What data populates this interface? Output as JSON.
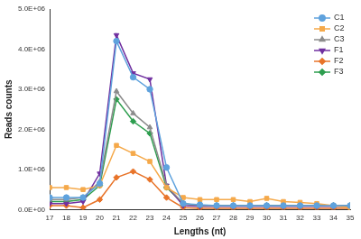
{
  "chart_data": {
    "type": "line",
    "x_label": "Lengths (nt)",
    "y_label": "Reads counts",
    "x": [
      17,
      18,
      19,
      20,
      21,
      22,
      23,
      24,
      25,
      26,
      27,
      28,
      29,
      30,
      31,
      32,
      33,
      34,
      35
    ],
    "xlim": [
      17,
      35
    ],
    "xticks": [
      17,
      18,
      19,
      20,
      21,
      22,
      23,
      24,
      25,
      26,
      27,
      28,
      29,
      30,
      31,
      32,
      33,
      34,
      35
    ],
    "ylim": [
      0,
      5000000
    ],
    "yticks": [
      {
        "value": 0,
        "label": "0.0E+00"
      },
      {
        "value": 1000000,
        "label": "1.0E+06"
      },
      {
        "value": 2000000,
        "label": "2.0E+06"
      },
      {
        "value": 3000000,
        "label": "3.0E+06"
      },
      {
        "value": 4000000,
        "label": "4.0E+06"
      },
      {
        "value": 5000000,
        "label": "5.0E+06"
      }
    ],
    "grid": false,
    "legend": "upper right",
    "series": [
      {
        "name": "C1",
        "color": "#5fa2dd",
        "marker": "circle",
        "values": [
          300000,
          300000,
          300000,
          650000,
          4200000,
          3300000,
          3000000,
          1050000,
          150000,
          120000,
          100000,
          100000,
          100000,
          100000,
          100000,
          100000,
          100000,
          100000,
          100000
        ]
      },
      {
        "name": "C2",
        "color": "#f5a94a",
        "marker": "square",
        "values": [
          550000,
          550000,
          500000,
          600000,
          1600000,
          1400000,
          1200000,
          550000,
          300000,
          250000,
          250000,
          250000,
          200000,
          280000,
          200000,
          180000,
          150000,
          100000,
          50000
        ]
      },
      {
        "name": "C3",
        "color": "#8c8c8c",
        "marker": "triangle",
        "values": [
          250000,
          250000,
          300000,
          700000,
          2950000,
          2400000,
          2050000,
          600000,
          150000,
          100000,
          100000,
          100000,
          100000,
          100000,
          100000,
          100000,
          100000,
          100000,
          100000
        ]
      },
      {
        "name": "F1",
        "color": "#7030a0",
        "marker": "triangle-down",
        "values": [
          150000,
          150000,
          200000,
          900000,
          4350000,
          3400000,
          3250000,
          600000,
          100000,
          80000,
          80000,
          80000,
          80000,
          80000,
          80000,
          80000,
          80000,
          80000,
          80000
        ]
      },
      {
        "name": "F2",
        "color": "#e8742a",
        "marker": "diamond",
        "values": [
          100000,
          100000,
          50000,
          250000,
          800000,
          950000,
          750000,
          300000,
          50000,
          30000,
          30000,
          30000,
          30000,
          30000,
          30000,
          30000,
          30000,
          30000,
          30000
        ]
      },
      {
        "name": "F3",
        "color": "#2e9e4f",
        "marker": "diamond",
        "values": [
          200000,
          200000,
          250000,
          600000,
          2750000,
          2200000,
          1900000,
          550000,
          150000,
          100000,
          100000,
          100000,
          100000,
          100000,
          100000,
          100000,
          100000,
          100000,
          100000
        ]
      }
    ]
  }
}
